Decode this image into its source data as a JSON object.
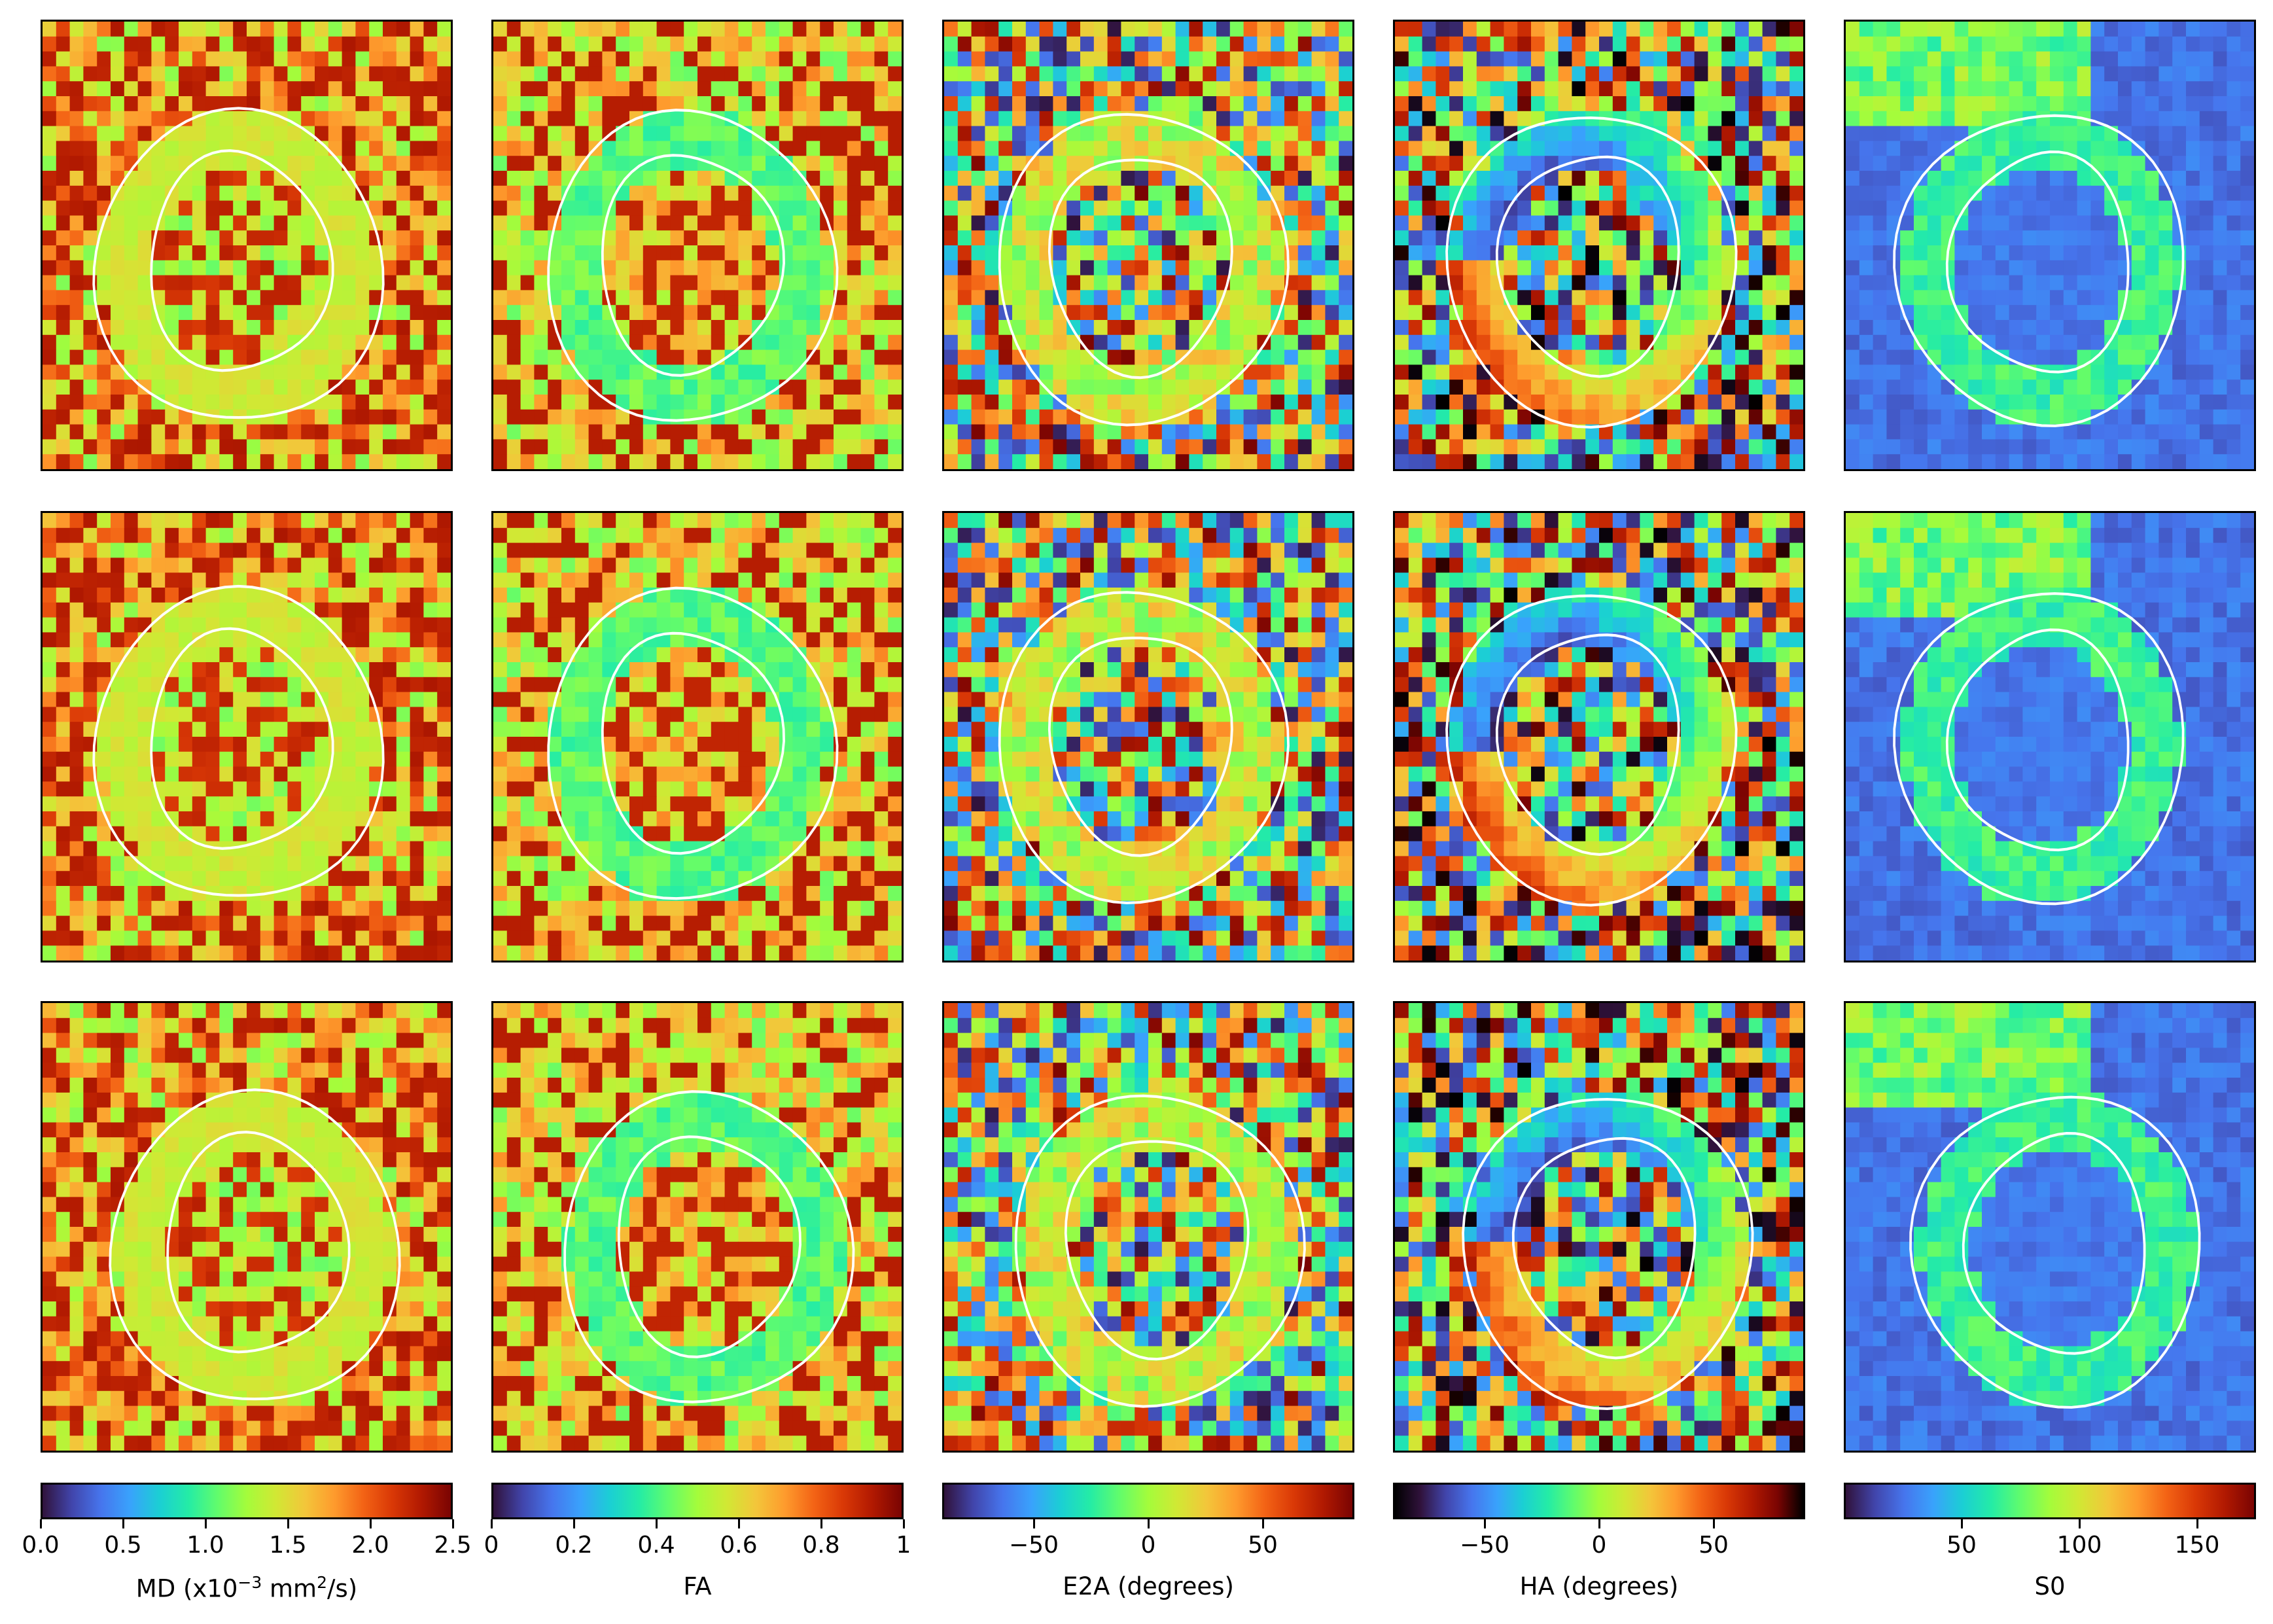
{
  "figure": {
    "rows": 3,
    "columns": [
      {
        "key": "md",
        "colormap": "turbo",
        "colorbar_label_html": "MD (x10<sup>−3</sup> mm<sup>2</sup>/s)",
        "colorbar_label_text": "MD (x10^-3 mm^2/s)",
        "range": [
          0.0,
          2.5
        ],
        "ticks": [
          {
            "value": 0.0,
            "label": "0.0"
          },
          {
            "value": 0.5,
            "label": "0.5"
          },
          {
            "value": 1.0,
            "label": "1.0"
          },
          {
            "value": 1.5,
            "label": "1.5"
          },
          {
            "value": 2.0,
            "label": "2.0"
          },
          {
            "value": 2.5,
            "label": "2.5"
          }
        ]
      },
      {
        "key": "fa",
        "colormap": "turbo",
        "colorbar_label_text": "FA",
        "range": [
          0,
          1
        ],
        "ticks": [
          {
            "value": 0,
            "label": "0"
          },
          {
            "value": 0.2,
            "label": "0.2"
          },
          {
            "value": 0.4,
            "label": "0.4"
          },
          {
            "value": 0.6,
            "label": "0.6"
          },
          {
            "value": 0.8,
            "label": "0.8"
          },
          {
            "value": 1,
            "label": "1"
          }
        ]
      },
      {
        "key": "e2a",
        "colormap": "turbo",
        "colorbar_label_text": "E2A (degrees)",
        "range": [
          -90,
          90
        ],
        "ticks": [
          {
            "value": -50,
            "label": "−50"
          },
          {
            "value": 0,
            "label": "0"
          },
          {
            "value": 50,
            "label": "50"
          }
        ]
      },
      {
        "key": "ha",
        "colormap": "ha",
        "colorbar_label_text": "HA (degrees)",
        "range": [
          -90,
          90
        ],
        "ticks": [
          {
            "value": -50,
            "label": "−50"
          },
          {
            "value": 0,
            "label": "0"
          },
          {
            "value": 50,
            "label": "50"
          }
        ]
      },
      {
        "key": "s0",
        "colormap": "turbo",
        "colorbar_label_text": "S0",
        "range": [
          0,
          175
        ],
        "ticks": [
          {
            "value": 50,
            "label": "50"
          },
          {
            "value": 100,
            "label": "100"
          },
          {
            "value": 150,
            "label": "150"
          }
        ]
      }
    ],
    "colors": {
      "contour": "#ffffff",
      "frame": "#000000"
    }
  }
}
